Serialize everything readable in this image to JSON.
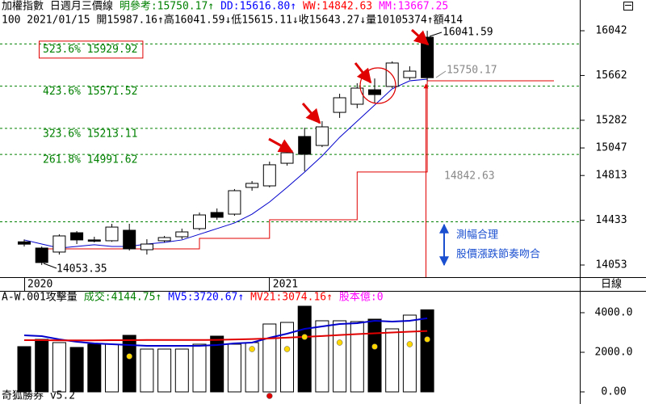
{
  "chart_data": [
    {
      "type": "candlestick",
      "title": "加權指數 日週月三價線",
      "header_items": [
        {
          "text": "明參考:15750.17↑",
          "color": "#008000"
        },
        {
          "text": "DD:15616.80↑",
          "color": "#0000ff"
        },
        {
          "text": "WW:14842.63",
          "color": "#ff0000"
        },
        {
          "text": "MM:13667.25",
          "color": "#ff00ff"
        }
      ],
      "info_line": "100 2021/01/15 開15987.16↑高16041.59↓低15615.11↓收15643.27↓量10105374↑額414",
      "categories": [
        "2020",
        null,
        null,
        null,
        null,
        null,
        null,
        null,
        null,
        null,
        null,
        null,
        null,
        null,
        "2021",
        null,
        null,
        null,
        null,
        null,
        null,
        null,
        null,
        null
      ],
      "open": [
        14250,
        14197,
        14163,
        14327,
        14266,
        14259,
        14348,
        14183,
        14259,
        14293,
        14362,
        14499,
        14485,
        14712,
        14725,
        14917,
        15144,
        15068,
        15349,
        15418,
        15541,
        15569,
        15644,
        15987.16
      ],
      "high": [
        14270,
        14210,
        14314,
        14341,
        14293,
        14403,
        14403,
        14272,
        14300,
        14362,
        14499,
        14533,
        14698,
        14766,
        14931,
        15034,
        15219,
        15274,
        15507,
        15596,
        15637,
        15782,
        15740,
        16041.59
      ],
      "low": [
        14210,
        14053.35,
        14142,
        14231,
        14245,
        14250,
        14176,
        14142,
        14245,
        14272,
        14348,
        14437,
        14471,
        14684,
        14712,
        14897,
        14849,
        15054,
        15302,
        15384,
        15432,
        15555,
        15624,
        15615.11
      ],
      "close": [
        14230,
        14074,
        14300,
        14266,
        14255,
        14375,
        14190,
        14231,
        14286,
        14334,
        14478,
        14458,
        14684,
        14746,
        14904,
        15006,
        14993,
        15226,
        15473,
        15555,
        15500,
        15768,
        15699,
        15643.27
      ],
      "up_color": "#ffffff",
      "down_color": "#000000",
      "lines": [
        {
          "color": "#0000cc",
          "step": false,
          "values": [
            14266,
            14231,
            14197,
            14211,
            14225,
            14211,
            14211,
            14231,
            14245,
            14266,
            14314,
            14362,
            14410,
            14485,
            14588,
            14712,
            14842,
            14979,
            15137,
            15274,
            15411,
            15549,
            15617,
            15631
          ]
        },
        {
          "color": "#e00000",
          "step": true,
          "values": [
            null,
            14190,
            14190,
            14190,
            14190,
            14190,
            14190,
            14190,
            14190,
            14190,
            14279,
            14279,
            14279,
            14279,
            14437,
            14437,
            14437,
            14437,
            14437,
            14842.63,
            14842.63,
            14842.63,
            14842.63,
            15616.8
          ]
        }
      ],
      "levels": [
        {
          "value": 15929.92,
          "label": "523.6% 15929.92",
          "boxed": true
        },
        {
          "value": 15571.52,
          "label": "423.6% 15571.52",
          "boxed": false
        },
        {
          "value": 15213.11,
          "label": "323.6% 15213.11",
          "boxed": false
        },
        {
          "value": 14991.62,
          "label": "261.8% 14991.62",
          "boxed": false
        },
        {
          "value": 14420,
          "label": null,
          "boxed": false
        }
      ],
      "level_color": "#008000",
      "annotations": [
        "16041.59",
        "14053.35",
        "15750.17",
        "14842.63",
        "測幅合理",
        "股價漲跌節奏吻合"
      ],
      "period_label": "日線",
      "ylim": [
        13950,
        16080
      ],
      "yticks": [
        16042,
        15662,
        15282,
        15047,
        14813,
        14433,
        14053
      ]
    },
    {
      "type": "bar",
      "title": "A-W.001攻擊量",
      "header_items": [
        {
          "text": "成交:4144.75↑",
          "color": "#008000"
        },
        {
          "text": "MV5:3720.67↑",
          "color": "#0000ff"
        },
        {
          "text": "MV21:3074.16↑",
          "color": "#ff0000"
        },
        {
          "text": "股本億:0",
          "color": "#ff00ff"
        }
      ],
      "values": [
        2286,
        2653,
        2490,
        2245,
        2408,
        2408,
        2857,
        2163,
        2163,
        2163,
        2408,
        2816,
        2408,
        2490,
        3429,
        3510,
        4327,
        3592,
        3592,
        3551,
        3673,
        3184,
        3878,
        4144.75
      ],
      "lines": [
        {
          "color": "#0000cc",
          "values": [
            2857,
            2816,
            2653,
            2531,
            2449,
            2408,
            2367,
            2327,
            2327,
            2327,
            2327,
            2367,
            2449,
            2490,
            2735,
            2939,
            3184,
            3306,
            3429,
            3469,
            3592,
            3551,
            3592,
            3720.67
          ]
        },
        {
          "color": "#e00000",
          "values": [
            2610,
            2610,
            2600,
            2600,
            2600,
            2610,
            2610,
            2620,
            2620,
            2620,
            2620,
            2630,
            2650,
            2670,
            2700,
            2740,
            2780,
            2820,
            2870,
            2920,
            2960,
            3000,
            3040,
            3074.16
          ]
        }
      ],
      "dots": [
        {
          "color": "#ffd700",
          "values": [
            null,
            null,
            null,
            null,
            null,
            null,
            1796,
            null,
            null,
            null,
            null,
            null,
            null,
            2163,
            null,
            2163,
            2776,
            null,
            2490,
            null,
            2286,
            null,
            2408,
            2653
          ]
        },
        {
          "color": "#e00000",
          "values": [
            null,
            null,
            null,
            null,
            null,
            null,
            null,
            null,
            null,
            null,
            null,
            null,
            null,
            null,
            -204,
            null,
            null,
            null,
            null,
            null,
            null,
            null,
            null,
            null
          ]
        }
      ],
      "ylim": [
        -600,
        5000
      ],
      "yticks": [
        {
          "value": 4000,
          "label": "4000.0"
        },
        {
          "value": 2000,
          "label": "2000.0"
        },
        {
          "value": 0,
          "label": "0.00"
        }
      ],
      "footer": "奇狐勝券 v5.2"
    }
  ]
}
